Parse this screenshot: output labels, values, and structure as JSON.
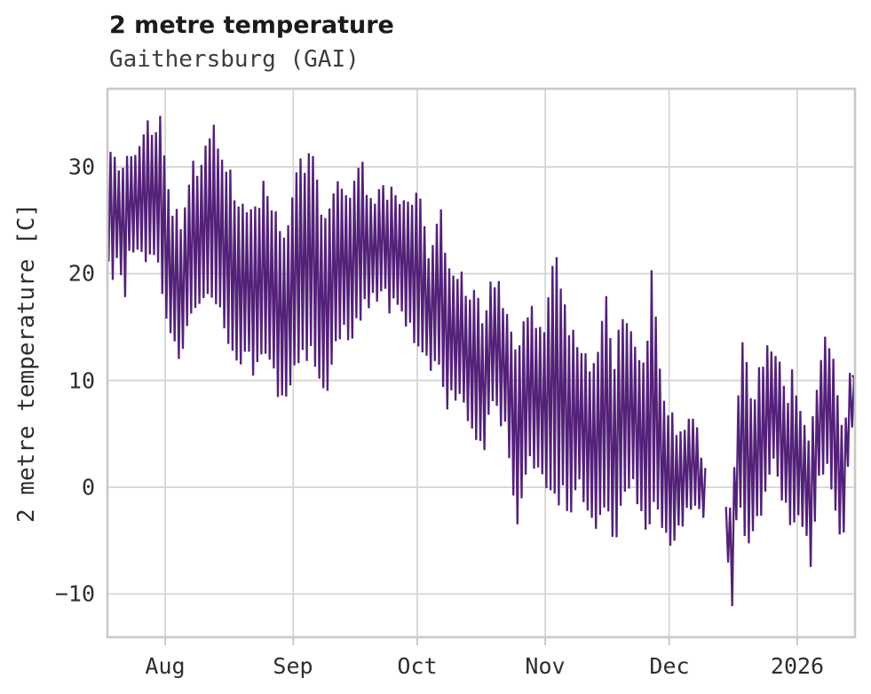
{
  "chart_data": {
    "type": "line",
    "title": "2 metre temperature",
    "subtitle": "Gaithersburg (GAI)",
    "ylabel": "2 metre temperature [C]",
    "xlabel": "",
    "legend": null,
    "grid": true,
    "background_color": "#ffffff",
    "line_color": "#542179",
    "grid_color": "#d5d5d5",
    "border_color": "#c9c9c9",
    "text_color": "#2e2e2e",
    "ylim": [
      -14.05,
      37.32
    ],
    "yticks": [
      -10,
      0,
      10,
      20,
      30
    ],
    "ytick_labels": [
      "−10",
      "0",
      "10",
      "20",
      "30"
    ],
    "x_total_days": 181,
    "x_tick_days": [
      14,
      45,
      75,
      106,
      136,
      167
    ],
    "x_tick_labels": [
      "Aug",
      "Sep",
      "Oct",
      "Nov",
      "Dec",
      "2026"
    ],
    "gap_days": [
      144.85,
      149.75
    ],
    "points_per_day_offsets": [
      0.28,
      0.76
    ],
    "noise_seed": 9,
    "noise_amp": 1.1,
    "end_point": [
      180.4,
      10.5
    ],
    "envelope_day_min_max": [
      [
        0,
        22.5,
        29.5
      ],
      [
        1,
        20,
        31
      ],
      [
        3,
        21.5,
        29
      ],
      [
        4,
        17.5,
        29
      ],
      [
        5,
        21.5,
        31.3
      ],
      [
        7,
        23,
        30
      ],
      [
        9,
        21,
        33.8
      ],
      [
        11,
        21,
        33
      ],
      [
        12.8,
        20.5,
        35.2
      ],
      [
        14,
        17,
        29
      ],
      [
        16,
        13,
        26
      ],
      [
        18,
        12.5,
        25
      ],
      [
        20,
        16,
        29.3
      ],
      [
        22,
        17,
        30
      ],
      [
        24,
        18,
        31.5
      ],
      [
        26,
        17.5,
        33.9
      ],
      [
        28,
        15,
        30
      ],
      [
        30,
        12,
        28.5
      ],
      [
        32,
        11,
        27
      ],
      [
        34,
        12,
        25
      ],
      [
        36,
        10.5,
        26
      ],
      [
        38,
        12,
        28.6
      ],
      [
        40,
        11,
        26
      ],
      [
        42,
        8.5,
        23.5
      ],
      [
        43.4,
        8.4,
        24
      ],
      [
        45,
        10.5,
        28.5
      ],
      [
        47,
        12,
        30
      ],
      [
        49.8,
        13,
        31.7
      ],
      [
        51,
        10,
        27
      ],
      [
        53,
        9,
        26
      ],
      [
        55,
        14,
        28.5
      ],
      [
        57,
        15,
        27
      ],
      [
        59,
        13.5,
        26
      ],
      [
        61,
        16,
        30.5
      ],
      [
        63,
        17,
        28
      ],
      [
        65,
        17.5,
        26.5
      ],
      [
        67,
        18,
        28.4
      ],
      [
        69,
        17,
        27
      ],
      [
        71,
        16,
        25.5
      ],
      [
        73,
        15,
        27
      ],
      [
        75,
        13,
        27.5
      ],
      [
        77,
        14,
        24
      ],
      [
        78,
        11,
        20
      ],
      [
        80.4,
        12,
        27.3
      ],
      [
        82,
        8,
        20
      ],
      [
        84,
        9,
        21
      ],
      [
        86,
        8.5,
        19
      ],
      [
        88,
        5,
        18
      ],
      [
        91,
        3.8,
        16
      ],
      [
        93,
        8,
        19.2
      ],
      [
        95,
        7,
        18.5
      ],
      [
        97,
        4,
        15
      ],
      [
        99.3,
        -2.8,
        12
      ],
      [
        101,
        1,
        15.5
      ],
      [
        103,
        2.5,
        16.5
      ],
      [
        105,
        0,
        14
      ],
      [
        107,
        1,
        18
      ],
      [
        108.5,
        -1.5,
        21.7
      ],
      [
        110,
        0,
        17
      ],
      [
        112,
        -2.4,
        15
      ],
      [
        114,
        0,
        13.5
      ],
      [
        116,
        -2.5,
        12
      ],
      [
        118,
        -4,
        11.5
      ],
      [
        120.8,
        -2,
        17.1
      ],
      [
        122.8,
        -5.2,
        12
      ],
      [
        125,
        -1,
        17.4
      ],
      [
        127,
        0,
        13
      ],
      [
        129,
        -2,
        11
      ],
      [
        131,
        -3.5,
        14
      ],
      [
        131.8,
        -2,
        20.1
      ],
      [
        134,
        -3,
        10
      ],
      [
        136,
        -5.5,
        6.7
      ],
      [
        138,
        -3.5,
        5
      ],
      [
        140,
        -2.5,
        6.5
      ],
      [
        142,
        -2,
        6.3
      ],
      [
        144,
        -2.5,
        3
      ],
      [
        150,
        -6,
        -2
      ],
      [
        151.3,
        -11.5,
        -3
      ],
      [
        152.3,
        -4,
        6
      ],
      [
        153.8,
        -2,
        14.6
      ],
      [
        155,
        -7,
        10
      ],
      [
        156,
        -3.5,
        8
      ],
      [
        158,
        -3.4,
        11
      ],
      [
        160,
        1,
        14.5
      ],
      [
        161.5,
        3,
        11
      ],
      [
        163,
        0,
        12.1
      ],
      [
        164.5,
        -2,
        8
      ],
      [
        166,
        -4,
        10.5
      ],
      [
        167,
        -2.5,
        7
      ],
      [
        169,
        -4,
        6
      ],
      [
        170.3,
        -6.5,
        4
      ],
      [
        172,
        0,
        10
      ],
      [
        173.8,
        2,
        14.5
      ],
      [
        176,
        -2,
        12
      ],
      [
        178,
        -5.7,
        5
      ],
      [
        179,
        0,
        8
      ],
      [
        180,
        6,
        10.5
      ]
    ]
  }
}
